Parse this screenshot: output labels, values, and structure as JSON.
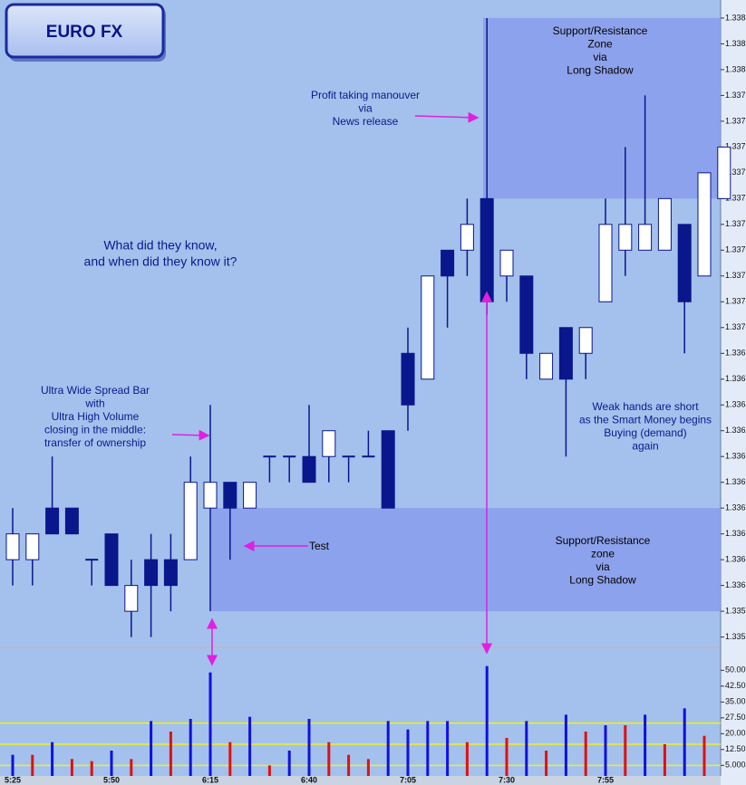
{
  "chart_data": [
    {
      "type": "candlestick",
      "title": "EURO FX",
      "open": [
        1.3361,
        1.3361,
        1.3363,
        1.3363,
        1.3361,
        1.3362,
        1.3359,
        1.3361,
        1.3361,
        1.3361,
        1.3363,
        1.3364,
        1.3363,
        1.3365,
        1.3365,
        1.3365,
        1.3365,
        1.3365,
        1.3365,
        1.3366,
        1.3369,
        1.3368,
        1.3373,
        1.3373,
        1.3375,
        1.3372,
        1.3372,
        1.3368,
        1.337,
        1.3369,
        1.3371,
        1.3373,
        1.3373,
        1.3373,
        1.3374,
        1.3372,
        1.3375
      ],
      "high": [
        1.3363,
        1.3362,
        1.3365,
        1.3363,
        1.3361,
        1.3362,
        1.3361,
        1.3362,
        1.3362,
        1.3365,
        1.3367,
        1.3364,
        1.3364,
        1.3365,
        1.3365,
        1.3367,
        1.3366,
        1.3365,
        1.3366,
        1.3366,
        1.337,
        1.3372,
        1.3373,
        1.3375,
        1.3382,
        1.3373,
        1.3372,
        1.3369,
        1.337,
        1.337,
        1.3375,
        1.3377,
        1.3379,
        1.3375,
        1.3374,
        1.3376,
        1.3377
      ],
      "low": [
        1.336,
        1.336,
        1.3362,
        1.3362,
        1.336,
        1.336,
        1.3358,
        1.3358,
        1.3359,
        1.3361,
        1.3359,
        1.3361,
        1.3363,
        1.3364,
        1.3364,
        1.3364,
        1.3364,
        1.3364,
        1.3365,
        1.3363,
        1.3366,
        1.3368,
        1.337,
        1.3372,
        1.33705,
        1.3371,
        1.3368,
        1.3368,
        1.3365,
        1.3368,
        1.3371,
        1.3372,
        1.3373,
        1.3373,
        1.3369,
        1.3372,
        1.3375
      ],
      "close": [
        1.3362,
        1.3362,
        1.3362,
        1.3362,
        1.3361,
        1.336,
        1.336,
        1.336,
        1.336,
        1.3364,
        1.3364,
        1.3363,
        1.3364,
        1.3365,
        1.3365,
        1.3364,
        1.3366,
        1.3365,
        1.3365,
        1.3363,
        1.3367,
        1.3372,
        1.3372,
        1.3374,
        1.3371,
        1.3373,
        1.3369,
        1.3369,
        1.3368,
        1.337,
        1.3374,
        1.3374,
        1.3374,
        1.3375,
        1.3371,
        1.3376,
        1.3377
      ],
      "up_color": "#ffffff",
      "down_color": "#0a168c",
      "ylim": [
        1.33576,
        1.33827
      ],
      "yticks": [
        {
          "value": 1.3382,
          "label": "1.338"
        },
        {
          "value": 1.3381,
          "label": "1.338"
        },
        {
          "value": 1.338,
          "label": "1.338"
        },
        {
          "value": 1.3379,
          "label": "1.337"
        },
        {
          "value": 1.3378,
          "label": "1.337"
        },
        {
          "value": 1.3377,
          "label": "1.337"
        },
        {
          "value": 1.3376,
          "label": "1.337"
        },
        {
          "value": 1.3375,
          "label": "1.337"
        },
        {
          "value": 1.3374,
          "label": "1.337"
        },
        {
          "value": 1.3373,
          "label": "1.337"
        },
        {
          "value": 1.3372,
          "label": "1.337"
        },
        {
          "value": 1.3371,
          "label": "1.337"
        },
        {
          "value": 1.337,
          "label": "1.337"
        },
        {
          "value": 1.3369,
          "label": "1.336"
        },
        {
          "value": 1.3368,
          "label": "1.336"
        },
        {
          "value": 1.3367,
          "label": "1.336"
        },
        {
          "value": 1.3366,
          "label": "1.336"
        },
        {
          "value": 1.3365,
          "label": "1.336"
        },
        {
          "value": 1.3364,
          "label": "1.336"
        },
        {
          "value": 1.3363,
          "label": "1.336"
        },
        {
          "value": 1.3362,
          "label": "1.336"
        },
        {
          "value": 1.3361,
          "label": "1.336"
        },
        {
          "value": 1.336,
          "label": "1.336"
        },
        {
          "value": 1.3359,
          "label": "1.335"
        },
        {
          "value": 1.3358,
          "label": "1.335"
        }
      ],
      "zones": [
        {
          "low": 1.3375,
          "high": 1.3382,
          "color": "#8a9cec",
          "lines": [
            "Support/Resistance",
            "Zone",
            "via",
            "Long Shadow"
          ]
        },
        {
          "low": 1.3359,
          "high": 1.3363,
          "color": "#8a9cec",
          "lines": [
            "Support/Resistance",
            "zone",
            "via",
            "Long Shadow"
          ]
        }
      ],
      "annotations": [
        {
          "lines": [
            "What did they know,",
            "and when did they know it?"
          ]
        },
        {
          "lines": [
            "Ultra Wide Spread Bar",
            "with",
            "Ultra High Volume",
            "closing in the middle:",
            "transfer of ownership"
          ]
        },
        {
          "lines": [
            "Profit taking manouver",
            "via",
            "News release"
          ]
        },
        {
          "lines": [
            "Weak hands are short",
            "as the Smart Money  begins",
            "Buying (demand)",
            "again"
          ]
        },
        {
          "lines": [
            "Test"
          ]
        }
      ]
    },
    {
      "type": "bar",
      "categories": [
        "5:25",
        null,
        null,
        null,
        null,
        "5:50",
        null,
        null,
        null,
        null,
        "6:15",
        null,
        null,
        null,
        null,
        "6:40",
        null,
        null,
        null,
        null,
        "7:05",
        null,
        null,
        null,
        null,
        "7:30",
        null,
        null,
        null,
        null,
        "7:55",
        null,
        null,
        null,
        null,
        null,
        null
      ],
      "values": [
        10,
        10,
        16,
        8,
        7,
        12,
        8,
        26,
        21,
        27,
        49,
        16,
        28,
        5,
        12,
        27,
        16,
        10,
        8,
        26,
        22,
        26,
        26,
        16,
        52,
        18,
        26,
        12,
        29,
        21,
        24,
        24,
        29,
        15,
        32,
        19,
        null
      ],
      "colors": [
        "#1010e0",
        "#e01010",
        "#1010e0",
        "#e01010",
        "#e01010",
        "#1010e0",
        "#e01010",
        "#1010e0",
        "#e01010",
        "#1010e0",
        "#1010e0",
        "#e01010",
        "#1010e0",
        "#e01010",
        "#1010e0",
        "#1010e0",
        "#e01010",
        "#e01010",
        "#e01010",
        "#1010e0",
        "#1010e0",
        "#1010e0",
        "#1010e0",
        "#e01010",
        "#1010e0",
        "#e01010",
        "#1010e0",
        "#e01010",
        "#1010e0",
        "#e01010",
        "#1010e0",
        "#e01010",
        "#1010e0",
        "#e01010",
        "#1010e0",
        "#e01010",
        "#1010e0"
      ],
      "levels": [
        25,
        15,
        5
      ],
      "level_color": "#f0f020",
      "ylim": [
        0,
        60
      ],
      "yticks": [
        {
          "value": 50,
          "label": "50.00"
        },
        {
          "value": 42.5,
          "label": "42.50"
        },
        {
          "value": 35,
          "label": "35.00"
        },
        {
          "value": 27.5,
          "label": "27.50"
        },
        {
          "value": 20,
          "label": "20.00"
        },
        {
          "value": 12.5,
          "label": "12.50"
        },
        {
          "value": 5,
          "label": "5.000"
        }
      ]
    }
  ]
}
